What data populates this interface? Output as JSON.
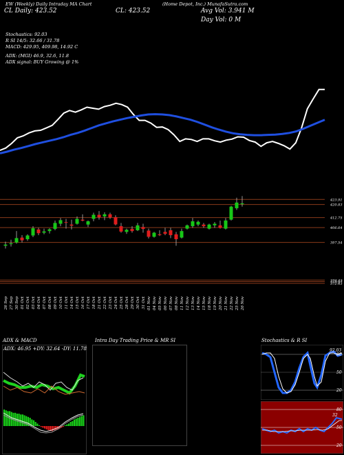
{
  "header": {
    "line1": "EW (Weekly) Daily Intraday MA Chart",
    "right_label": "(Home Depot, Inc.) MunafaSutra.com",
    "cl_label": "CL: 423.52",
    "cl_sub": "CL Daily: 423.52",
    "avg_vol": "Avg Vol: 3.941 M",
    "day_vol": "Day Vol: 0   M",
    "stochastics": "Stochastics: 92.03",
    "rsi": "R            SI 14/5: 32.66  / 31.78",
    "macd": "MACD: 429.95, 409.98, 14.92  C",
    "adx": "ADX:                           (MGI) 46.9, 32.6, 11.8",
    "adx_signal": "ADX  signal:                    BUY Growing @ 1%"
  },
  "colors": {
    "background": "#000000",
    "price_line": "#ffffff",
    "ma_line": "#1f4fe0",
    "candle_up": "#17c717",
    "candle_down": "#e01c1c",
    "level_line": "#8a3a1a",
    "stoch_bg": "#000000",
    "rsi_bg": "#8b0000"
  },
  "chart_data": [
    {
      "type": "candlestick",
      "title": "Main price chart",
      "x": [
        "26 Sep",
        "27 Sep",
        "30 Sep",
        "01 Oct",
        "02 Oct",
        "03 Oct",
        "04 Oct",
        "07 Oct",
        "08 Oct",
        "09 Oct",
        "10 Oct",
        "11 Oct",
        "14 Oct",
        "15 Oct",
        "16 Oct",
        "17 Oct",
        "18 Oct",
        "21 Oct",
        "22 Oct",
        "23 Oct",
        "24 Oct",
        "25 Oct",
        "28 Oct",
        "29 Oct",
        "30 Oct",
        "31 Oct",
        "01 Nov",
        "04 Nov",
        "05 Nov",
        "06 Nov",
        "07 Nov",
        "08 Nov",
        "11 Nov",
        "12 Nov",
        "13 Nov",
        "14 Nov",
        "15 Nov",
        "18 Nov",
        "19 Nov",
        "20 Nov",
        "21 Nov",
        "22 Nov",
        "25 Nov",
        "26 Nov"
      ],
      "candles": [
        {
          "o": 395.5,
          "h": 398.0,
          "l": 393.8,
          "c": 396.2
        },
        {
          "o": 396.5,
          "h": 399.2,
          "l": 395.0,
          "c": 397.0
        },
        {
          "o": 397.5,
          "h": 404.5,
          "l": 396.8,
          "c": 400.2
        },
        {
          "o": 400.5,
          "h": 402.0,
          "l": 397.5,
          "c": 398.8
        },
        {
          "o": 399.5,
          "h": 402.5,
          "l": 398.5,
          "c": 401.8
        },
        {
          "o": 401.8,
          "h": 407.5,
          "l": 400.8,
          "c": 406.2
        },
        {
          "o": 405.5,
          "h": 406.5,
          "l": 402.0,
          "c": 403.2
        },
        {
          "o": 403.5,
          "h": 406.0,
          "l": 402.5,
          "c": 404.3
        },
        {
          "o": 404.5,
          "h": 406.2,
          "l": 403.0,
          "c": 405.6
        },
        {
          "o": 405.8,
          "h": 411.0,
          "l": 405.0,
          "c": 409.5
        },
        {
          "o": 409.0,
          "h": 412.5,
          "l": 407.5,
          "c": 411.2
        },
        {
          "o": 410.0,
          "h": 412.0,
          "l": 406.0,
          "c": 409.8
        },
        {
          "o": 408.5,
          "h": 411.5,
          "l": 405.5,
          "c": 407.8
        },
        {
          "o": 409.0,
          "h": 413.5,
          "l": 408.5,
          "c": 412.0
        },
        {
          "o": 411.5,
          "h": 414.8,
          "l": 410.5,
          "c": 410.9
        },
        {
          "o": 408.5,
          "h": 411.0,
          "l": 407.0,
          "c": 410.5
        },
        {
          "o": 412.0,
          "h": 415.8,
          "l": 410.5,
          "c": 414.5
        },
        {
          "o": 414.5,
          "h": 416.8,
          "l": 411.5,
          "c": 413.0
        },
        {
          "o": 413.5,
          "h": 416.0,
          "l": 411.2,
          "c": 414.8
        },
        {
          "o": 414.8,
          "h": 415.8,
          "l": 412.0,
          "c": 412.9
        },
        {
          "o": 413.0,
          "h": 414.2,
          "l": 408.0,
          "c": 408.6
        },
        {
          "o": 407.5,
          "h": 409.5,
          "l": 403.5,
          "c": 404.2
        },
        {
          "o": 404.0,
          "h": 406.0,
          "l": 402.8,
          "c": 405.3
        },
        {
          "o": 405.8,
          "h": 407.5,
          "l": 403.5,
          "c": 404.5
        },
        {
          "o": 405.0,
          "h": 409.5,
          "l": 404.5,
          "c": 408.0
        },
        {
          "o": 407.0,
          "h": 409.0,
          "l": 403.5,
          "c": 405.8
        },
        {
          "o": 404.8,
          "h": 406.0,
          "l": 400.0,
          "c": 401.0
        },
        {
          "o": 401.0,
          "h": 404.0,
          "l": 400.5,
          "c": 403.5
        },
        {
          "o": 402.5,
          "h": 405.0,
          "l": 401.5,
          "c": 402.0
        },
        {
          "o": 404.0,
          "h": 406.5,
          "l": 402.0,
          "c": 402.8
        },
        {
          "o": 405.0,
          "h": 406.5,
          "l": 400.2,
          "c": 402.0
        },
        {
          "o": 402.5,
          "h": 404.0,
          "l": 395.5,
          "c": 399.5
        },
        {
          "o": 400.5,
          "h": 406.0,
          "l": 400.0,
          "c": 404.5
        },
        {
          "o": 406.0,
          "h": 408.5,
          "l": 405.5,
          "c": 408.0
        },
        {
          "o": 407.5,
          "h": 412.5,
          "l": 406.5,
          "c": 410.5
        },
        {
          "o": 408.5,
          "h": 411.0,
          "l": 407.5,
          "c": 410.2
        },
        {
          "o": 408.5,
          "h": 409.5,
          "l": 406.5,
          "c": 407.5
        },
        {
          "o": 406.0,
          "h": 409.0,
          "l": 405.5,
          "c": 408.5
        },
        {
          "o": 408.0,
          "h": 410.0,
          "l": 406.5,
          "c": 409.0
        },
        {
          "o": 408.0,
          "h": 411.0,
          "l": 406.0,
          "c": 406.5
        },
        {
          "o": 406.0,
          "h": 412.5,
          "l": 405.5,
          "c": 411.0
        },
        {
          "o": 411.5,
          "h": 420.0,
          "l": 411.0,
          "c": 419.5
        },
        {
          "o": 418.5,
          "h": 425.0,
          "l": 417.5,
          "c": 422.0
        },
        {
          "o": 421.0,
          "h": 426.0,
          "l": 419.5,
          "c": 421.5
        }
      ],
      "levels": [
        {
          "value": 423.91,
          "label": "423.91"
        },
        {
          "value": 420.83,
          "label": "420.83"
        },
        {
          "value": 412.75,
          "label": "412.75"
        },
        {
          "value": 406.64,
          "label": "406.64"
        },
        {
          "value": 397.54,
          "label": "397.54"
        },
        {
          "value": 374.43,
          "label": "374.43"
        },
        {
          "value": 373.47,
          "label": "373.47"
        },
        {
          "value": 372.43,
          "label": "372.43"
        }
      ],
      "price_line": [
        412.5,
        413.2,
        414.6,
        416.3,
        416.9,
        417.8,
        418.4,
        418.6,
        419.3,
        420.1,
        421.9,
        423.8,
        424.6,
        424.1,
        424.8,
        425.6,
        425.3,
        425.0,
        425.8,
        426.2,
        426.8,
        426.4,
        425.6,
        423.4,
        421.6,
        421.6,
        420.8,
        419.5,
        419.6,
        418.8,
        417.2,
        415.2,
        416.0,
        415.8,
        415.2,
        416.0,
        416.0,
        415.4,
        415.0,
        415.6,
        415.9,
        416.6,
        416.5,
        415.5,
        415.0,
        413.7,
        414.8,
        415.2,
        414.6,
        413.9,
        412.9,
        414.8,
        419.3,
        425.1,
        428.1,
        431.0,
        431.0
      ],
      "ma_line": [
        411.6,
        412.1,
        412.7,
        413.2,
        413.8,
        414.4,
        414.9,
        415.4,
        415.9,
        416.5,
        417.2,
        417.8,
        418.5,
        419.3,
        420.1,
        420.7,
        421.3,
        421.8,
        422.3,
        422.7,
        423.1,
        423.4,
        423.5,
        423.4,
        423.2,
        422.8,
        422.3,
        421.8,
        421.1,
        420.3,
        419.5,
        418.8,
        418.2,
        417.7,
        417.4,
        417.2,
        417.1,
        417.1,
        417.2,
        417.3,
        417.5,
        417.8,
        418.3,
        419.1,
        420.0,
        420.9,
        421.8
      ],
      "ylim": [
        368,
        432
      ]
    },
    {
      "type": "line",
      "title": "ADX  & MACD",
      "readout": "ADX: 46.95  +DY: 32.64  -DY: 11.78"
    },
    {
      "type": "line",
      "title": "Intra  Day Trading Price  & MR                    SI"
    },
    {
      "type": "line",
      "title": "Stochastics & R                    SI",
      "stoch_ticks": [
        "80",
        "50",
        "20"
      ],
      "stoch_value_label": "92.03",
      "rsi_ticks": [
        "80",
        "50",
        "20"
      ],
      "rsi_value_label": "32"
    }
  ]
}
